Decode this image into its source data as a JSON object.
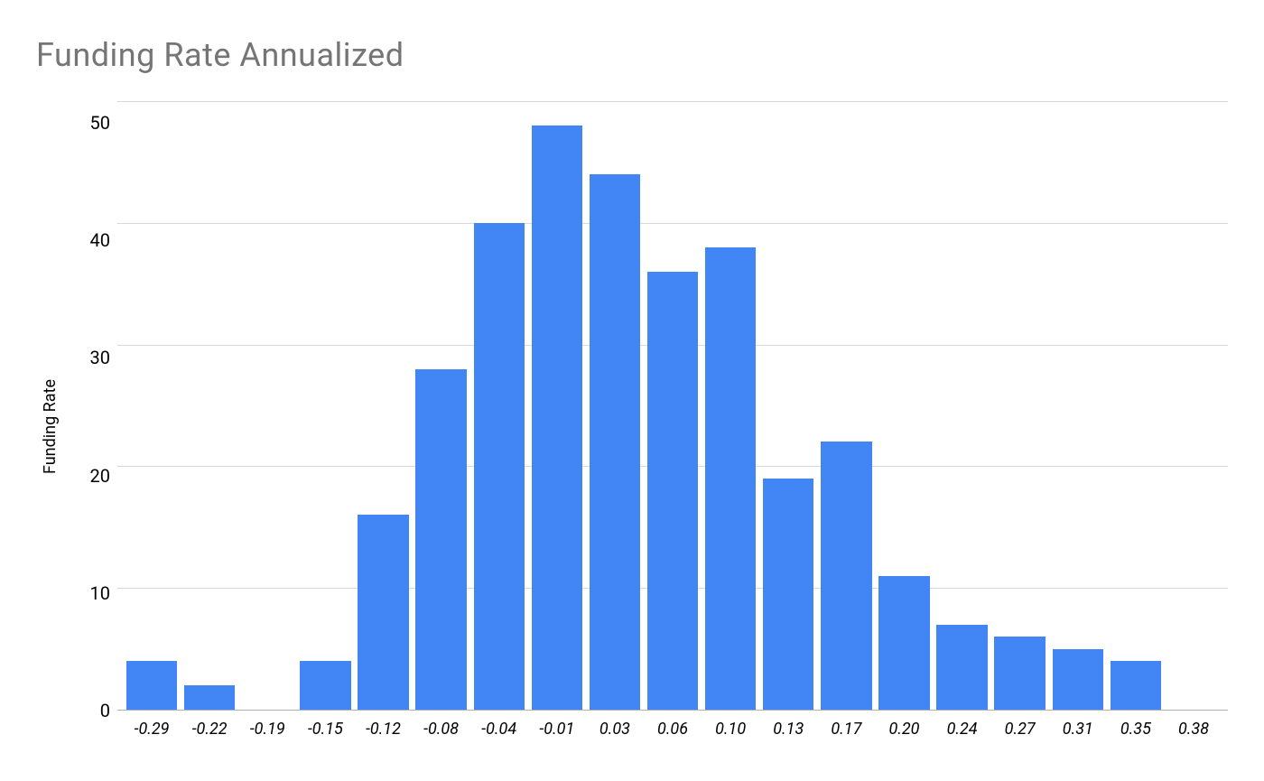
{
  "chart": {
    "type": "histogram",
    "title": "Funding Rate Annualized",
    "title_color": "#757575",
    "title_fontsize": 36,
    "ylabel": "Funding Rate",
    "ylabel_fontsize": 18,
    "background_color": "#ffffff",
    "grid_color": "#d8d8d8",
    "axis_color": "#b0b0b0",
    "bar_color": "#4285f4",
    "bar_width": 0.88,
    "ylim": [
      0,
      50
    ],
    "ytick_step": 10,
    "yticks": [
      "50",
      "40",
      "30",
      "20",
      "10",
      "0"
    ],
    "xtick_fontsize": 18,
    "xtick_fontstyle": "italic",
    "ytick_fontsize": 20,
    "categories": [
      "-0.29",
      "-0.22",
      "-0.19",
      "-0.15",
      "-0.12",
      "-0.08",
      "-0.04",
      "-0.01",
      "0.03",
      "0.06",
      "0.10",
      "0.13",
      "0.17",
      "0.20",
      "0.24",
      "0.27",
      "0.31",
      "0.35",
      "0.38"
    ],
    "values": [
      4,
      2,
      0,
      4,
      16,
      28,
      40,
      48,
      44,
      36,
      38,
      19,
      22,
      11,
      7,
      6,
      5,
      4,
      0
    ]
  }
}
